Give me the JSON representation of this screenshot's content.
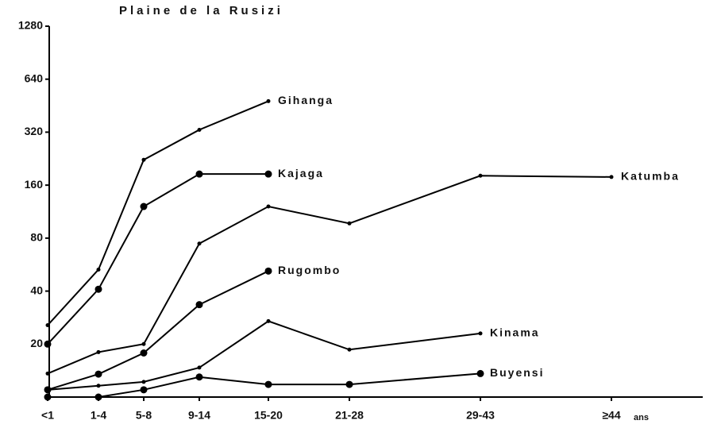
{
  "chart_data": {
    "type": "line",
    "title": "Plaine de la Rusizi",
    "categories": [
      "<1",
      "1-4",
      "5-8",
      "9-14",
      "15-20",
      "21-28",
      "29-43",
      "≥44"
    ],
    "x_label": "ans",
    "ylim": [
      10,
      1280
    ],
    "yticks": [
      20,
      40,
      80,
      160,
      320,
      640,
      1280
    ],
    "log_scale": true,
    "grid": false,
    "series": [
      {
        "name": "Gihanga",
        "color": "#000000",
        "marker": "small",
        "values": [
          25.6,
          53,
          223,
          330,
          480,
          null,
          null,
          null
        ]
      },
      {
        "name": "Kajaga",
        "color": "#000000",
        "marker": "large",
        "values": [
          20,
          41,
          121,
          185,
          185,
          null,
          null,
          null
        ]
      },
      {
        "name": "Katumba",
        "color": "#000000",
        "marker": "small",
        "values": [
          13.6,
          18,
          20,
          74.5,
          121,
          97,
          181,
          178
        ]
      },
      {
        "name": "Rugombo",
        "color": "#000000",
        "marker": "large",
        "values": [
          11,
          13.5,
          17.8,
          33.5,
          52,
          null,
          null,
          null
        ]
      },
      {
        "name": "Kinama",
        "color": "#000000",
        "marker": "small",
        "values": [
          11,
          11.6,
          12.2,
          14.7,
          27,
          18.6,
          23,
          null
        ]
      },
      {
        "name": "Buyensi",
        "color": "#000000",
        "marker": "large",
        "values": [
          10,
          10,
          11,
          13,
          11.8,
          11.8,
          13.6,
          null
        ]
      }
    ]
  }
}
